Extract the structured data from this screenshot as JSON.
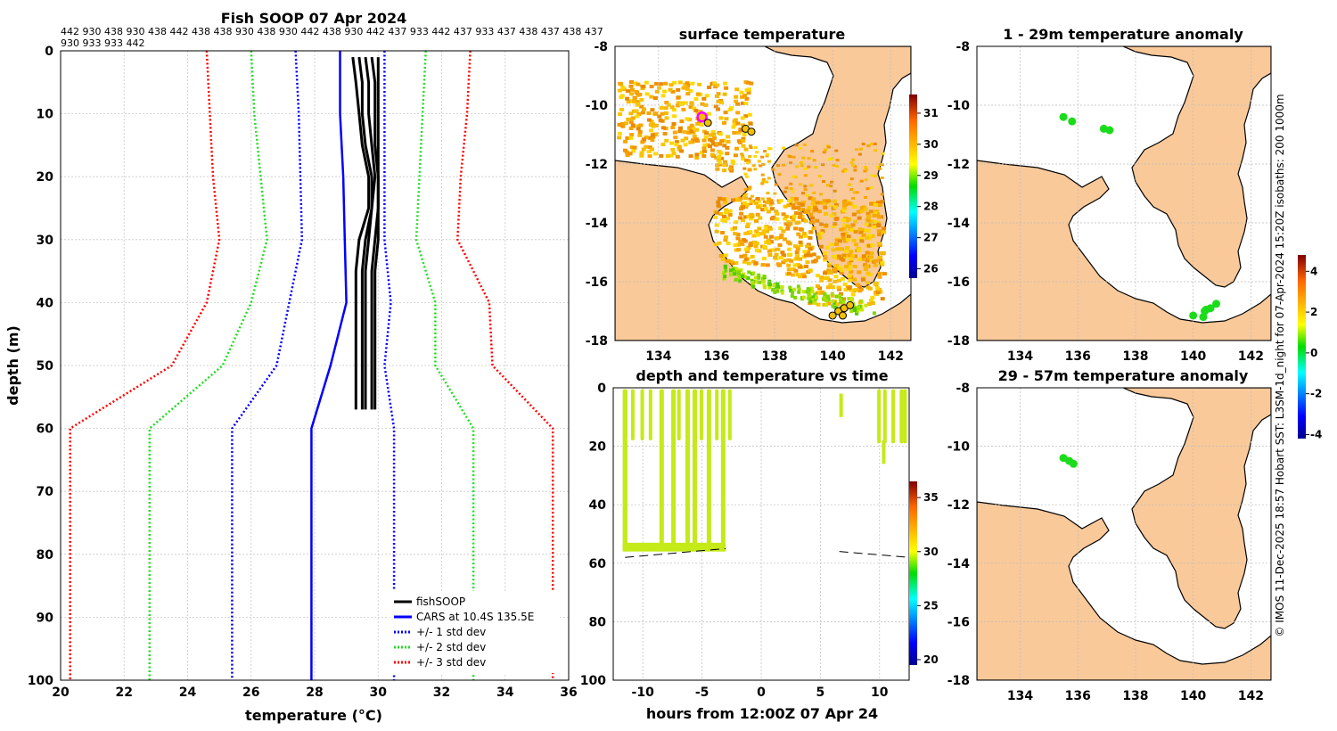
{
  "chart_data": [
    {
      "id": "profile",
      "type": "line",
      "title": "Fish SOOP 07 Apr 2024",
      "subtitle": [
        "442 930 438 930 438 442 438 438 930 438 930 442 438 930 442 437 933 442 437 933 437 438 437 438 437",
        "930 933 933 442"
      ],
      "xlabel": "temperature (°C)",
      "ylabel": "depth (m)",
      "xlim": [
        20,
        36
      ],
      "ylim": [
        0,
        100
      ],
      "xticks": [
        20,
        22,
        24,
        26,
        28,
        30,
        32,
        34,
        36
      ],
      "yticks": [
        0,
        10,
        20,
        30,
        40,
        50,
        60,
        70,
        80,
        90,
        100
      ],
      "depths": [
        0,
        10,
        20,
        30,
        40,
        50,
        60,
        100
      ],
      "series": [
        {
          "name": "CARS at 10.4S 135.5E",
          "color": "#0000ff",
          "style": "solid",
          "values": [
            28.8,
            28.8,
            28.9,
            28.95,
            29.0,
            28.5,
            27.9,
            27.9
          ]
        },
        {
          "name": "+/- 1 std dev",
          "color": "#0000ff",
          "style": "dotted",
          "values": [
            27.4,
            27.5,
            27.55,
            27.6,
            27.2,
            26.8,
            25.4,
            25.4
          ]
        },
        {
          "name": "+/- 1 std dev upper",
          "color": "#0000ff",
          "style": "dotted",
          "values": [
            30.2,
            30.2,
            30.2,
            30.2,
            30.4,
            30.2,
            30.5,
            30.5
          ]
        },
        {
          "name": "+/- 2 std dev",
          "color": "#22dd22",
          "style": "dotted",
          "values": [
            26.0,
            26.1,
            26.3,
            26.5,
            26.0,
            25.1,
            22.8,
            22.8
          ]
        },
        {
          "name": "+/- 2 std dev upper",
          "color": "#22dd22",
          "style": "dotted",
          "values": [
            31.5,
            31.4,
            31.3,
            31.2,
            31.8,
            31.8,
            33.0,
            33.0
          ]
        },
        {
          "name": "+/- 3 std dev",
          "color": "#ff0000",
          "style": "dotted",
          "values": [
            24.6,
            24.7,
            24.8,
            25.0,
            24.6,
            23.5,
            20.3,
            20.3
          ]
        },
        {
          "name": "+/- 3 std dev upper",
          "color": "#ff0000",
          "style": "dotted",
          "values": [
            32.9,
            32.8,
            32.6,
            32.5,
            33.5,
            33.6,
            35.5,
            35.5
          ]
        }
      ],
      "fishsoop_casts": [
        {
          "depths": [
            1,
            5,
            10,
            15,
            20,
            25,
            30,
            35,
            40,
            45,
            50,
            55,
            57
          ],
          "values": [
            29.2,
            29.3,
            29.4,
            29.5,
            29.7,
            29.7,
            29.4,
            29.3,
            29.3,
            29.3,
            29.3,
            29.3,
            29.3
          ]
        },
        {
          "depths": [
            1,
            5,
            10,
            15,
            20,
            25,
            30,
            35,
            40,
            45,
            50,
            55,
            57
          ],
          "values": [
            29.4,
            29.5,
            29.5,
            29.6,
            29.8,
            29.8,
            29.6,
            29.5,
            29.5,
            29.5,
            29.5,
            29.5,
            29.5
          ]
        },
        {
          "depths": [
            1,
            5,
            10,
            15,
            20,
            25,
            30,
            35,
            40,
            45,
            50,
            55,
            57
          ],
          "values": [
            29.6,
            29.7,
            29.7,
            29.8,
            29.9,
            29.8,
            29.7,
            29.6,
            29.6,
            29.6,
            29.6,
            29.6,
            29.6
          ]
        },
        {
          "depths": [
            1,
            5,
            10,
            15,
            20,
            25,
            30,
            35,
            40,
            45,
            50,
            55,
            57
          ],
          "values": [
            29.8,
            29.9,
            29.9,
            29.9,
            30.0,
            30.0,
            29.9,
            29.8,
            29.8,
            29.8,
            29.8,
            29.8,
            29.8
          ]
        },
        {
          "depths": [
            1,
            5,
            10,
            15,
            20,
            25,
            30,
            35,
            40,
            45,
            50,
            55,
            57
          ],
          "values": [
            30.0,
            30.0,
            30.0,
            30.0,
            30.0,
            30.0,
            30.0,
            29.9,
            29.9,
            29.9,
            29.9,
            29.9,
            29.9
          ]
        }
      ],
      "legend": [
        "fishSOOP",
        "CARS at 10.4S 135.5E",
        "+/- 1 std dev",
        "+/- 2 std dev",
        "+/- 3 std dev"
      ],
      "legend_colors": [
        "#000000",
        "#0000ff",
        "#0000ff",
        "#22dd22",
        "#ff0000"
      ],
      "legend_position": "bottom-right"
    },
    {
      "id": "sst",
      "type": "heatmap",
      "title": "surface temperature",
      "xlim": [
        132.5,
        142.7
      ],
      "ylim": [
        -18,
        -8
      ],
      "xticks": [
        134,
        136,
        138,
        140,
        142
      ],
      "yticks": [
        -8,
        -10,
        -12,
        -14,
        -16,
        -18
      ],
      "colorbar": {
        "min": 25.7,
        "max": 31.6,
        "ticks": [
          26,
          27,
          28,
          29,
          30,
          31
        ]
      },
      "markers": [
        [
          135.5,
          -10.4
        ],
        [
          135.7,
          -10.6
        ],
        [
          137.0,
          -10.8
        ],
        [
          137.2,
          -10.9
        ],
        [
          140.0,
          -17.15
        ],
        [
          140.2,
          -17.0
        ],
        [
          140.4,
          -16.9
        ],
        [
          140.6,
          -16.8
        ],
        [
          140.35,
          -17.15
        ]
      ]
    },
    {
      "id": "timeseries",
      "type": "scatter",
      "title": "depth and temperature vs time",
      "xlabel": "hours from 12:00Z 07 Apr 24",
      "xlim": [
        -12.5,
        12.5
      ],
      "ylim": [
        0,
        100
      ],
      "xticks": [
        -10,
        -5,
        0,
        5,
        10
      ],
      "yticks": [
        0,
        20,
        40,
        60,
        80,
        100
      ],
      "colorbar": {
        "min": 19.5,
        "max": 36.5,
        "ticks": [
          20,
          25,
          30,
          35
        ]
      },
      "deep_casts": [
        [
          -11.7,
          -11.3
        ],
        [
          -8.6,
          -8.3
        ],
        [
          -7.6,
          -7.3
        ],
        [
          -6.4,
          -6.1
        ],
        [
          -5.8,
          -5.5
        ],
        [
          -4.6,
          -4.3
        ],
        [
          -3.4,
          -3.1
        ]
      ],
      "shallow_casts": [
        [
          -11.0,
          -10.8
        ],
        [
          -10.2,
          -10.0
        ],
        [
          -9.5,
          -9.3
        ],
        [
          -7.1,
          -6.9
        ],
        [
          -5.2,
          -5.0
        ],
        [
          -3.9,
          -3.7
        ],
        [
          -2.8,
          -2.6
        ]
      ],
      "late_casts": [
        [
          9.8,
          10.0
        ],
        [
          10.3,
          10.5
        ],
        [
          11.0,
          11.2
        ],
        [
          11.7,
          11.9
        ],
        [
          12.0,
          12.2
        ]
      ],
      "seafloor": [
        [
          -11.5,
          58
        ],
        [
          -3,
          55
        ],
        [
          6.6,
          56
        ],
        [
          10.5,
          58
        ]
      ]
    },
    {
      "id": "anom1",
      "type": "scatter",
      "title": "1 - 29m temperature anomaly",
      "xlim": [
        132.5,
        142.7
      ],
      "ylim": [
        -18,
        -8
      ],
      "xticks": [
        134,
        136,
        138,
        140,
        142
      ],
      "yticks": [
        -8,
        -10,
        -12,
        -14,
        -16,
        -18
      ],
      "points": [
        [
          135.5,
          -10.4
        ],
        [
          135.8,
          -10.55
        ],
        [
          136.9,
          -10.8
        ],
        [
          137.1,
          -10.85
        ],
        [
          140.0,
          -17.15
        ],
        [
          140.4,
          -17.0
        ],
        [
          140.6,
          -16.9
        ],
        [
          140.8,
          -16.75
        ],
        [
          140.35,
          -17.2
        ],
        [
          140.45,
          -16.95
        ]
      ],
      "point_color": "#1bdc1b"
    },
    {
      "id": "anom2",
      "type": "scatter",
      "title": "29 - 57m temperature anomaly",
      "xlim": [
        132.5,
        142.7
      ],
      "ylim": [
        -18,
        -8
      ],
      "xticks": [
        134,
        136,
        138,
        140,
        142
      ],
      "yticks": [
        -8,
        -10,
        -12,
        -14,
        -16,
        -18
      ],
      "points": [
        [
          135.5,
          -10.4
        ],
        [
          135.7,
          -10.5
        ],
        [
          135.85,
          -10.6
        ]
      ],
      "point_color": "#1bdc1b",
      "colorbar": {
        "min": -4.2,
        "max": 4.8,
        "ticks": [
          -4,
          -2,
          0,
          2,
          4
        ]
      }
    }
  ],
  "credit": "© IMOS 11-Dec-2025 18:57 Hobart SST: L3SM-1d_night for 07-Apr-2024 15:20Z isobaths: 200  1000m",
  "colors": {
    "land": "#f9c99a",
    "grid": "#bbbbbb"
  }
}
